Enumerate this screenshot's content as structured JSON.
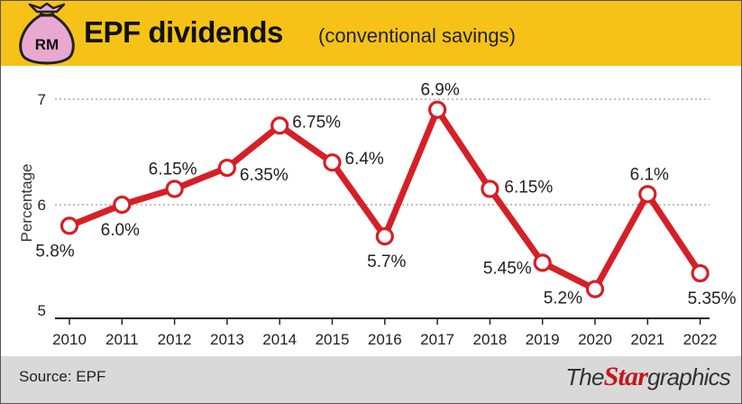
{
  "header": {
    "bag_label": "RM",
    "title": "EPF dividends",
    "subtitle": "(conventional savings)"
  },
  "footer": {
    "source": "Source: EPF",
    "brand_the": "The",
    "brand_star": "Star",
    "brand_graphics": "graphics"
  },
  "colors": {
    "header_bg": "#f6c218",
    "line": "#d61f26",
    "footer_bg": "#d9d9d9",
    "bag": "#e8a8d0"
  },
  "chart_data": {
    "type": "line",
    "title": "EPF dividends",
    "subtitle": "(conventional savings)",
    "xlabel": "",
    "ylabel": "Percentage",
    "x": [
      "2010",
      "2011",
      "2012",
      "2013",
      "2014",
      "2015",
      "2016",
      "2017",
      "2018",
      "2019",
      "2020",
      "2021",
      "2022"
    ],
    "values": [
      5.8,
      6.0,
      6.15,
      6.35,
      6.75,
      6.4,
      5.7,
      6.9,
      6.15,
      5.45,
      5.2,
      6.1,
      5.35
    ],
    "data_labels": [
      "5.8%",
      "6.0%",
      "6.15%",
      "6.35%",
      "6.75%",
      "6.4%",
      "5.7%",
      "6.9%",
      "6.15%",
      "5.45%",
      "5.2%",
      "6.1%",
      "5.35%"
    ],
    "yticks": [
      "5",
      "6",
      "7"
    ],
    "ylim": [
      5,
      7
    ],
    "grid": true,
    "grid_style": "dotted-horizontal"
  }
}
